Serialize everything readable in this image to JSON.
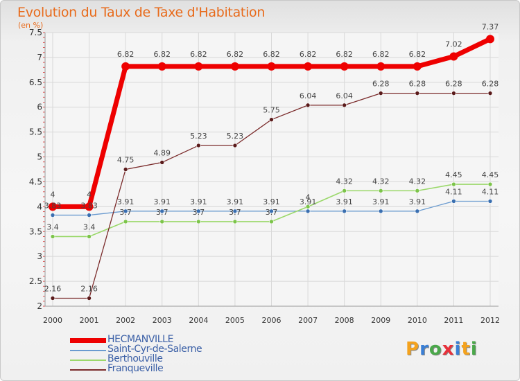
{
  "header": {
    "title": "Evolution du Taux de Taxe d'Habitation",
    "subtitle": "(en %)"
  },
  "chart_data": {
    "type": "line",
    "title": "Evolution du Taux de Taxe d'Habitation",
    "ylabel": "(en %)",
    "xlabel": "",
    "x": [
      "2000",
      "2001",
      "2002",
      "2003",
      "2004",
      "2005",
      "2006",
      "2007",
      "2008",
      "2009",
      "2010",
      "2011",
      "2012"
    ],
    "ylim": [
      2,
      7.5
    ],
    "yticks": [
      "2",
      "2.5",
      "3",
      "3.5",
      "4",
      "4.5",
      "5",
      "5.5",
      "6",
      "6.5",
      "7",
      "7.5"
    ],
    "grid": true,
    "legend_position": "bottom-left",
    "series": [
      {
        "name": "HECMANVILLE",
        "color": "#ee0000",
        "values": [
          4,
          4,
          6.82,
          6.82,
          6.82,
          6.82,
          6.82,
          6.82,
          6.82,
          6.82,
          6.82,
          7.02,
          7.37
        ],
        "labels": [
          "4",
          "4",
          "6.82",
          "6.82",
          "6.82",
          "6.82",
          "6.82",
          "6.82",
          "6.82",
          "6.82",
          "6.82",
          "7.02",
          "7.37"
        ]
      },
      {
        "name": "Saint-Cyr-de-Salerne",
        "color": "#6a9bd0",
        "values": [
          3.83,
          3.83,
          3.91,
          3.91,
          3.91,
          3.91,
          3.91,
          3.91,
          3.91,
          3.91,
          3.91,
          4.11,
          4.11
        ],
        "labels": [
          "3.83",
          "3.83",
          "3.91",
          "3.91",
          "3.91",
          "3.91",
          "3.91",
          "3.91",
          "3.91",
          "3.91",
          "3.91",
          "4.11",
          "4.11"
        ]
      },
      {
        "name": "Berthouville",
        "color": "#9ad86a",
        "values": [
          3.4,
          3.4,
          3.7,
          3.7,
          3.7,
          3.7,
          3.7,
          4,
          4.32,
          4.32,
          4.32,
          4.45,
          4.45
        ],
        "labels": [
          "3.4",
          "3.4",
          "3.7",
          "3.7",
          "3.7",
          "3.7",
          "3.7",
          "4",
          "4.32",
          "4.32",
          "4.32",
          "4.45",
          "4.45"
        ]
      },
      {
        "name": "Franqueville",
        "color": "#7a2a2a",
        "values": [
          2.16,
          2.16,
          4.75,
          4.89,
          5.23,
          5.23,
          5.75,
          6.04,
          6.04,
          6.28,
          6.28,
          6.28,
          6.28
        ],
        "labels": [
          "2.16",
          "2.16",
          "4.75",
          "4.89",
          "5.23",
          "5.23",
          "5.75",
          "6.04",
          "6.04",
          "6.28",
          "6.28",
          "6.28",
          "6.28"
        ]
      }
    ]
  },
  "legend": {
    "items": [
      {
        "label": "HECMANVILLE",
        "color": "#ee0000"
      },
      {
        "label": "Saint-Cyr-de-Salerne",
        "color": "#6a9bd0"
      },
      {
        "label": "Berthouville",
        "color": "#9ad86a"
      },
      {
        "label": "Franqueville",
        "color": "#7a2a2a"
      }
    ]
  },
  "logo": {
    "text": "Proxiti",
    "letters": [
      "P",
      "r",
      "o",
      "x",
      "i",
      "t",
      "i"
    ],
    "colors": [
      "#f4a21d",
      "#3a7fd5",
      "#4aa84a",
      "#e8303a",
      "#3a7fd5",
      "#f4a21d",
      "#4aa84a"
    ]
  }
}
